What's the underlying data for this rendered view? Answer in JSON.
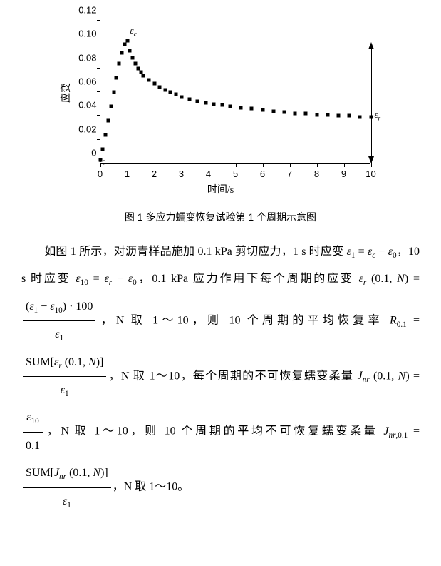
{
  "chart": {
    "type": "scatter",
    "ylabel": "应变",
    "xlabel": "时间/s",
    "ylim": [
      0,
      0.12
    ],
    "xlim": [
      0,
      10
    ],
    "yticks": [
      0,
      0.02,
      0.04,
      0.06,
      0.08,
      0.1,
      0.12
    ],
    "xticks": [
      0,
      1,
      2,
      3,
      4,
      5,
      6,
      7,
      8,
      9,
      10
    ],
    "marker_color": "#000000",
    "background_color": "#ffffff",
    "series_x": [
      0,
      0.1,
      0.2,
      0.3,
      0.4,
      0.5,
      0.6,
      0.7,
      0.8,
      0.9,
      1.0,
      1.1,
      1.2,
      1.3,
      1.4,
      1.5,
      1.6,
      1.8,
      2.0,
      2.2,
      2.4,
      2.6,
      2.8,
      3.0,
      3.3,
      3.6,
      3.9,
      4.2,
      4.5,
      4.8,
      5.2,
      5.6,
      6.0,
      6.4,
      6.8,
      7.2,
      7.6,
      8.0,
      8.4,
      8.8,
      9.2,
      9.6,
      10.0
    ],
    "series_y": [
      0.003,
      0.012,
      0.024,
      0.036,
      0.048,
      0.06,
      0.072,
      0.084,
      0.093,
      0.1,
      0.103,
      0.095,
      0.089,
      0.084,
      0.08,
      0.077,
      0.074,
      0.07,
      0.067,
      0.064,
      0.062,
      0.06,
      0.058,
      0.056,
      0.054,
      0.052,
      0.051,
      0.05,
      0.049,
      0.048,
      0.047,
      0.046,
      0.045,
      0.044,
      0.043,
      0.042,
      0.042,
      0.041,
      0.041,
      0.04,
      0.04,
      0.039,
      0.039
    ],
    "labels": {
      "eps0": "ε₀",
      "epsc": "εc",
      "epsr": "εr"
    }
  },
  "caption": "图 1  多应力蠕变恢复试验第 1 个周期示意图",
  "text": {
    "p1_a": "如图 1 所示，对沥青样品施加 0.1 kPa 剪切应力，1 s 时应变 ",
    "p1_b": "，10 s 时应变 ",
    "p1_c": "，0.1 kPa 应力作用下每个周期的应变 ",
    "eq_er": "εr (0.1, N) = ",
    "p2_a": "，N 取 1～10，则 10 个周期的平均恢复率 ",
    "eq_R": "R0.1 = ",
    "p3_a": "，N 取 1～10，每个周期的不可恢复蠕变柔量 ",
    "eq_Jnr": "Jnr (0.1, N) = ",
    "p4_a": "，N 取 1～10，则 10 个周期的平均不可恢复蠕变柔量 ",
    "eq_Jnr01": "Jnr,0.1 = ",
    "p5_a": "，N 取 1～10。",
    "frac1_num": "(ε₁ − ε₁₀) · 100",
    "frac1_den": "ε₁",
    "frac2_num": "SUM[εr (0.1, N)]",
    "frac2_den": "ε₁",
    "frac3_num": "ε₁₀",
    "frac3_den": "0.1",
    "frac4_num": "SUM[Jnr (0.1, N)]",
    "frac4_den": "ε₁",
    "eps1_eq": "ε₁ = εc − ε₀",
    "eps10_eq": "ε₁₀ = εr − ε₀"
  }
}
